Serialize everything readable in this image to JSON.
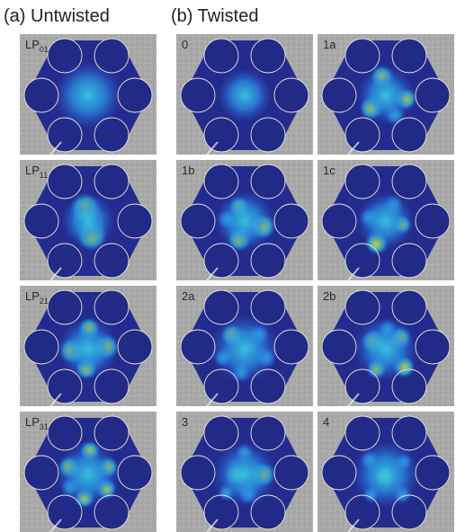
{
  "panels": {
    "a": {
      "title": "(a) Untwisted",
      "items": [
        {
          "label": "LP",
          "sub": "01"
        },
        {
          "label": "LP",
          "sub": "11"
        },
        {
          "label": "LP",
          "sub": "21"
        },
        {
          "label": "LP",
          "sub": "31"
        }
      ]
    },
    "b": {
      "title": "(b) Twisted",
      "items": [
        {
          "label": "0"
        },
        {
          "label": "1a"
        },
        {
          "label": "1b"
        },
        {
          "label": "1c"
        },
        {
          "label": "2a"
        },
        {
          "label": "2b"
        },
        {
          "label": "3"
        },
        {
          "label": "4"
        }
      ]
    }
  }
}
